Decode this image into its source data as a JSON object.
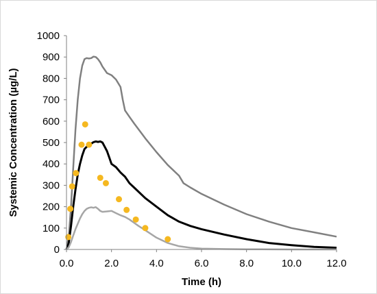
{
  "chart_data": {
    "type": "line",
    "title": "",
    "xlabel": "Time (h)",
    "ylabel": "Systemic Concentration (µg/L)",
    "xlim": [
      0,
      12
    ],
    "ylim": [
      0,
      1000
    ],
    "x_ticks": [
      "0.0",
      "2.0",
      "4.0",
      "6.0",
      "8.0",
      "10.0",
      "12.0"
    ],
    "y_ticks": [
      "0",
      "100",
      "200",
      "300",
      "400",
      "500",
      "600",
      "700",
      "800",
      "900",
      "1000"
    ],
    "grid": false,
    "legend": "none",
    "series": [
      {
        "kind": "line",
        "color": "#808080",
        "points": [
          [
            0,
            0
          ],
          [
            0.1,
            60
          ],
          [
            0.2,
            200
          ],
          [
            0.3,
            380
          ],
          [
            0.4,
            560
          ],
          [
            0.5,
            700
          ],
          [
            0.6,
            800
          ],
          [
            0.7,
            860
          ],
          [
            0.8,
            890
          ],
          [
            0.9,
            895
          ],
          [
            1.0,
            893
          ],
          [
            1.1,
            895
          ],
          [
            1.2,
            902
          ],
          [
            1.3,
            900
          ],
          [
            1.4,
            890
          ],
          [
            1.5,
            875
          ],
          [
            1.6,
            855
          ],
          [
            1.7,
            840
          ],
          [
            1.8,
            825
          ],
          [
            2.0,
            815
          ],
          [
            2.2,
            795
          ],
          [
            2.4,
            760
          ],
          [
            2.5,
            700
          ],
          [
            2.6,
            650
          ],
          [
            2.8,
            620
          ],
          [
            3.0,
            590
          ],
          [
            3.5,
            520
          ],
          [
            4.0,
            455
          ],
          [
            4.5,
            395
          ],
          [
            4.8,
            365
          ],
          [
            5.0,
            345
          ],
          [
            5.2,
            310
          ],
          [
            5.5,
            290
          ],
          [
            6.0,
            260
          ],
          [
            7.0,
            210
          ],
          [
            8.0,
            165
          ],
          [
            9.0,
            130
          ],
          [
            10.0,
            100
          ],
          [
            11.0,
            80
          ],
          [
            12.0,
            60
          ]
        ]
      },
      {
        "kind": "line",
        "color": "#000000",
        "points": [
          [
            0,
            0
          ],
          [
            0.1,
            30
          ],
          [
            0.2,
            110
          ],
          [
            0.3,
            200
          ],
          [
            0.4,
            280
          ],
          [
            0.5,
            350
          ],
          [
            0.6,
            400
          ],
          [
            0.7,
            440
          ],
          [
            0.8,
            470
          ],
          [
            0.9,
            480
          ],
          [
            1.0,
            487
          ],
          [
            1.1,
            495
          ],
          [
            1.2,
            502
          ],
          [
            1.3,
            505
          ],
          [
            1.4,
            503
          ],
          [
            1.5,
            505
          ],
          [
            1.6,
            500
          ],
          [
            1.7,
            480
          ],
          [
            1.8,
            460
          ],
          [
            1.9,
            430
          ],
          [
            2.0,
            400
          ],
          [
            2.2,
            385
          ],
          [
            2.4,
            360
          ],
          [
            2.6,
            340
          ],
          [
            2.8,
            310
          ],
          [
            3.0,
            290
          ],
          [
            3.5,
            240
          ],
          [
            4.0,
            200
          ],
          [
            4.5,
            160
          ],
          [
            5.0,
            130
          ],
          [
            5.5,
            110
          ],
          [
            6.0,
            95
          ],
          [
            7.0,
            70
          ],
          [
            8.0,
            48
          ],
          [
            9.0,
            30
          ],
          [
            10.0,
            20
          ],
          [
            11.0,
            12
          ],
          [
            12.0,
            8
          ]
        ]
      },
      {
        "kind": "line",
        "color": "#a6a6a6",
        "points": [
          [
            0,
            0
          ],
          [
            0.1,
            10
          ],
          [
            0.2,
            35
          ],
          [
            0.3,
            65
          ],
          [
            0.4,
            95
          ],
          [
            0.5,
            120
          ],
          [
            0.6,
            145
          ],
          [
            0.7,
            165
          ],
          [
            0.8,
            180
          ],
          [
            0.9,
            190
          ],
          [
            1.0,
            195
          ],
          [
            1.1,
            197
          ],
          [
            1.2,
            195
          ],
          [
            1.3,
            198
          ],
          [
            1.4,
            190
          ],
          [
            1.5,
            180
          ],
          [
            1.6,
            176
          ],
          [
            1.8,
            178
          ],
          [
            2.0,
            180
          ],
          [
            2.2,
            170
          ],
          [
            2.4,
            160
          ],
          [
            2.6,
            152
          ],
          [
            2.8,
            140
          ],
          [
            3.0,
            125
          ],
          [
            3.2,
            110
          ],
          [
            3.5,
            90
          ],
          [
            4.0,
            55
          ],
          [
            4.5,
            30
          ],
          [
            5.0,
            15
          ],
          [
            5.5,
            8
          ],
          [
            6.0,
            4
          ],
          [
            7.0,
            2
          ],
          [
            8.0,
            1
          ],
          [
            10.0,
            0
          ],
          [
            12.0,
            0
          ]
        ]
      },
      {
        "kind": "scatter",
        "color": "#f5b820",
        "points": [
          [
            0.08,
            58
          ],
          [
            0.17,
            190
          ],
          [
            0.25,
            295
          ],
          [
            0.42,
            357
          ],
          [
            0.67,
            490
          ],
          [
            0.83,
            585
          ],
          [
            1.0,
            490
          ],
          [
            1.5,
            335
          ],
          [
            1.75,
            310
          ],
          [
            2.33,
            235
          ],
          [
            2.67,
            185
          ],
          [
            3.08,
            140
          ],
          [
            3.5,
            100
          ],
          [
            4.5,
            48
          ]
        ]
      }
    ]
  }
}
